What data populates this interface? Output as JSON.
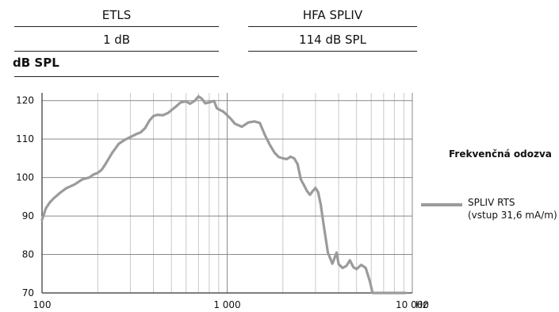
{
  "header_table": {
    "col1_header": "ETLS",
    "col1_value": "1 dB",
    "col2_header": "HFA SPLIV",
    "col2_value": "114 dB SPL"
  },
  "unit_label": "dB SPL",
  "chart_data": {
    "type": "line",
    "title": "",
    "xlabel": "Hz",
    "ylabel": "dB SPL",
    "x_scale": "log",
    "xlim": [
      100,
      10000
    ],
    "ylim": [
      70,
      122
    ],
    "x_ticks": [
      100,
      1000,
      10000
    ],
    "x_tick_labels": [
      "100",
      "1 000",
      "10 000"
    ],
    "y_ticks": [
      70,
      80,
      90,
      100,
      110,
      120
    ],
    "y_tick_labels": [
      "70",
      "80",
      "90",
      "100",
      "110",
      "120"
    ],
    "grid": true,
    "legend_title": "Frekvenčná odozva",
    "legend_position": "right",
    "series": [
      {
        "name": "SPLIV RTS",
        "name_line2": "(vstup 31,6 mA/m)",
        "color": "#9b9b9b",
        "x": [
          100,
          105,
          110,
          115,
          125,
          135,
          150,
          165,
          180,
          190,
          200,
          210,
          220,
          240,
          260,
          280,
          300,
          320,
          340,
          360,
          380,
          400,
          420,
          450,
          480,
          500,
          530,
          560,
          600,
          630,
          670,
          700,
          730,
          760,
          800,
          820,
          850,
          880,
          920,
          950,
          1000,
          1050,
          1100,
          1200,
          1300,
          1400,
          1500,
          1600,
          1700,
          1800,
          1900,
          2000,
          2100,
          2200,
          2300,
          2400,
          2500,
          2600,
          2700,
          2800,
          2900,
          3000,
          3100,
          3200,
          3300,
          3500,
          3700,
          3900,
          4000,
          4200,
          4400,
          4600,
          4800,
          5000,
          5300,
          5600,
          5900,
          6100,
          6300,
          6500,
          6800,
          7000,
          7200,
          7500,
          7800,
          8000,
          8200,
          8500,
          8800,
          9000,
          9200
        ],
        "y": [
          89,
          92,
          93.5,
          94.5,
          96,
          97.2,
          98.2,
          99.5,
          100,
          100.8,
          101.2,
          102,
          103.5,
          106.5,
          108.8,
          109.8,
          110.5,
          111.2,
          111.7,
          112.8,
          114.8,
          116,
          116.3,
          116.2,
          116.8,
          117.5,
          118.5,
          119.5,
          119.8,
          119.2,
          120,
          121.1,
          120.5,
          119.3,
          119.5,
          119.7,
          119.9,
          118,
          117.5,
          117.2,
          116.2,
          115.2,
          114,
          113.2,
          114.3,
          114.6,
          114.2,
          111,
          108.5,
          106.5,
          105.3,
          105,
          104.8,
          105.4,
          105,
          103.5,
          99.5,
          98,
          96.5,
          95.5,
          96.5,
          97.3,
          96.2,
          93,
          88.5,
          80.5,
          77.6,
          80.5,
          77.5,
          76.5,
          77,
          78.5,
          76.7,
          76.2,
          77.3,
          76.5,
          73,
          70,
          70,
          70,
          70,
          70,
          70,
          70,
          70,
          70,
          70,
          70,
          70,
          70,
          70
        ]
      }
    ]
  }
}
